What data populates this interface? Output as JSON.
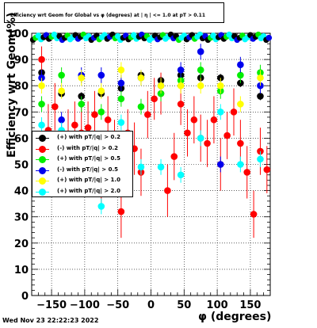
{
  "header": {
    "title": "Efficiency wrt Geom for Global vs φ (degrees) at | η | <= 1.0 at pT > 0.11"
  },
  "footer": {
    "timestamp": "Wed Nov 23 22:22:23 2022"
  },
  "chart_data": {
    "type": "scatter",
    "title": "Efficiency wrt Geom for Global vs φ (degrees) at | η | <= 1.0 at pT > 0.11",
    "xlabel": "φ (degrees)",
    "ylabel": "Efficiency wrt Geom(%)",
    "xlim": [
      -180,
      180
    ],
    "ylim": [
      0,
      100
    ],
    "xticks": [
      -150,
      -100,
      -50,
      0,
      50,
      100,
      150
    ],
    "yticks": [
      0,
      10,
      20,
      30,
      40,
      50,
      60,
      70,
      80,
      90,
      100
    ],
    "grid": true,
    "legend_position": "middle-left",
    "series": [
      {
        "name": "(+) with pT/|q| > 0.2",
        "color": "#000000",
        "x": [
          -165,
          -135,
          -105,
          -75,
          -45,
          -15,
          15,
          45,
          75,
          105,
          135,
          165
        ],
        "y": [
          85,
          77,
          76,
          77,
          79,
          84,
          82,
          84,
          83,
          83,
          81,
          76
        ],
        "err": [
          1.5,
          1.5,
          1.5,
          1.5,
          1.5,
          1.5,
          1.5,
          1.5,
          1.5,
          1.5,
          1.5,
          1.5
        ]
      },
      {
        "name": "(-) with pT/|q| > 0.2",
        "color": "#ff0000",
        "x": [
          -165,
          -155,
          -145,
          -125,
          -115,
          -105,
          -95,
          -85,
          -75,
          -65,
          -55,
          -45,
          -35,
          -25,
          -15,
          -5,
          5,
          15,
          25,
          35,
          45,
          55,
          65,
          75,
          85,
          95,
          105,
          115,
          125,
          135,
          145,
          155,
          165,
          175
        ],
        "y": [
          90,
          63,
          72,
          61,
          65,
          62,
          64,
          69,
          45,
          67,
          58,
          32,
          62,
          56,
          47,
          69,
          75,
          77,
          40,
          53,
          73,
          62,
          67,
          60,
          58,
          67,
          50,
          61,
          70,
          58,
          47,
          31,
          55,
          48
        ],
        "err": [
          5,
          10,
          9,
          10,
          9,
          10,
          10,
          9,
          11,
          9,
          9,
          10,
          9,
          10,
          9,
          9,
          8,
          8,
          10,
          9,
          8,
          9,
          9,
          9,
          9,
          9,
          10,
          9,
          9,
          9,
          10,
          9,
          9,
          9
        ]
      },
      {
        "name": "(+) with pT/|q| > 0.5",
        "color": "#00ee00",
        "x": [
          -165,
          -135,
          -105,
          -75,
          -45,
          -15,
          15,
          45,
          75,
          105,
          135,
          165
        ],
        "y": [
          73,
          84,
          73,
          70,
          75,
          72,
          77,
          82,
          86,
          78,
          84,
          85
        ],
        "err": [
          3,
          3,
          3,
          3,
          3,
          3,
          3,
          3,
          3,
          3,
          3,
          3
        ]
      },
      {
        "name": "(-) with pT/|q| > 0.5",
        "color": "#0000ee",
        "x": [
          -165,
          -135,
          -105,
          -75,
          -45,
          -15,
          15,
          45,
          75,
          105,
          135,
          165
        ],
        "y": [
          83,
          67,
          84,
          84,
          81,
          83,
          80,
          86,
          93,
          50,
          88,
          80
        ],
        "err": [
          3,
          3,
          3,
          3,
          3,
          3,
          3,
          3,
          3,
          3,
          3,
          3
        ]
      },
      {
        "name": "(+) with pT/|q| > 1.0",
        "color": "#ffff00",
        "x": [
          -165,
          -135,
          -105,
          -75,
          -45,
          -15,
          15,
          45,
          75,
          105,
          135,
          165
        ],
        "y": [
          80,
          78,
          83,
          78,
          86,
          83,
          80,
          80,
          80,
          80,
          73,
          83
        ],
        "err": [
          3,
          3,
          3,
          3,
          3,
          3,
          3,
          3,
          3,
          3,
          3,
          3
        ]
      },
      {
        "name": "(+) with pT/|q| > 2.0",
        "color": "#00ffff",
        "x": [
          -165,
          -135,
          -105,
          -75,
          -45,
          -15,
          15,
          45,
          75,
          105,
          135,
          165
        ],
        "y": [
          65,
          63,
          58,
          34,
          66,
          49,
          49,
          46,
          60,
          70,
          50,
          52
        ],
        "err": [
          3,
          3,
          3,
          3,
          3,
          3,
          3,
          3,
          3,
          3,
          3,
          3
        ]
      }
    ],
    "top_band": {
      "description": "dense points near 98-100%",
      "x_start": -180,
      "x_end": 180,
      "y_min": 97.5,
      "y_max": 99.5
    }
  }
}
